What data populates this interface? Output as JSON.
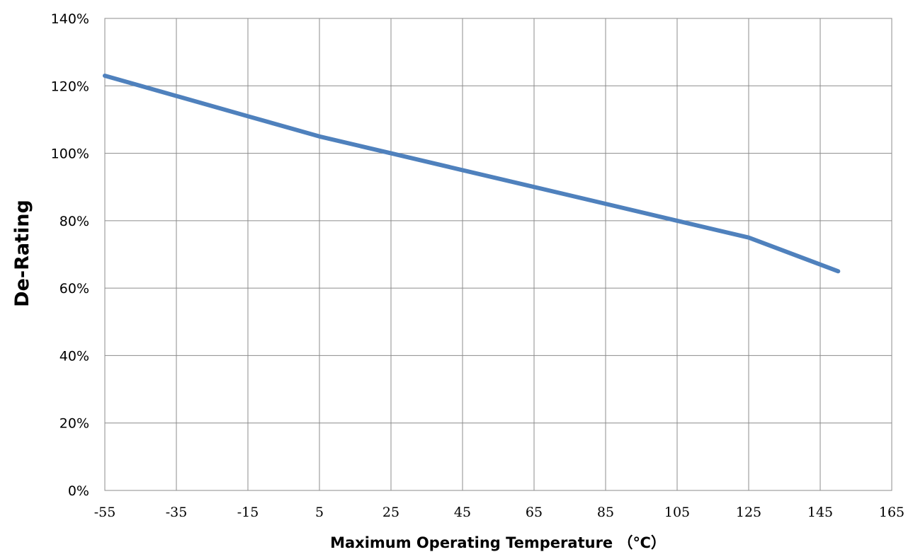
{
  "chart_data": {
    "type": "line",
    "title": "",
    "xlabel": "Maximum Operating Temperature （℃）",
    "ylabel": "De-Rating",
    "xlim": [
      -55,
      165
    ],
    "ylim": [
      0,
      140
    ],
    "x_ticks": [
      "-55",
      "-35",
      "-15",
      "5",
      "25",
      "45",
      "65",
      "85",
      "105",
      "125",
      "145",
      "165"
    ],
    "y_ticks": [
      "0%",
      "20%",
      "40%",
      "60%",
      "80%",
      "100%",
      "120%",
      "140%"
    ],
    "grid": true,
    "legend": "none",
    "series": [
      {
        "color": "#4f81bd",
        "points": [
          {
            "x": -55,
            "y": 123
          },
          {
            "x": -35,
            "y": 117
          },
          {
            "x": -15,
            "y": 111
          },
          {
            "x": 5,
            "y": 105
          },
          {
            "x": 25,
            "y": 100
          },
          {
            "x": 45,
            "y": 95
          },
          {
            "x": 65,
            "y": 90
          },
          {
            "x": 85,
            "y": 85
          },
          {
            "x": 105,
            "y": 80
          },
          {
            "x": 125,
            "y": 75
          },
          {
            "x": 150,
            "y": 65
          }
        ]
      }
    ]
  }
}
